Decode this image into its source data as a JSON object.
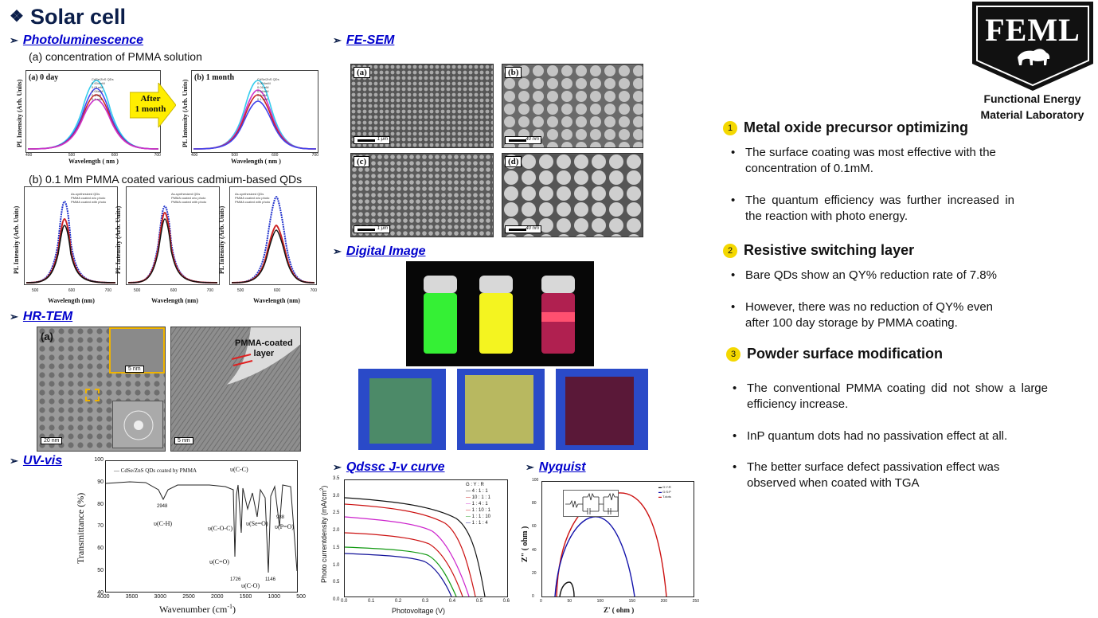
{
  "title": "Solar cell",
  "logo": {
    "text": "FEML",
    "caption_line1": "Functional Energy",
    "caption_line2": "Material Laboratory"
  },
  "pl": {
    "heading": "Photoluminescence",
    "sub_a": "(a) concentration of PMMA solution",
    "sub_b": "(b) 0.1 Mm PMMA coated various cadmium-based QDs",
    "arrow_line1": "After",
    "arrow_line2": "1 month",
    "panel_a": "(a) 0 day",
    "panel_b": "(b) 1 month",
    "ylabel_top": "PL Intensity (Arb. Units)",
    "xlabel_top": "Wavelength ( nm )",
    "ylabel_bottom": "PL Intensity (Arb. Units)",
    "xlabel_bottom": "Wavelength (nm)",
    "legend_top": [
      "CdSe/ZnS QDs",
      "0.004mM",
      "0.01mM",
      "0.04mM",
      "0.1mM",
      "0.1 mM"
    ],
    "legend_bottom": [
      "As-synthesized QDs",
      "PMMA coated w/o photo",
      "PMMA coated with photo"
    ],
    "ticks_top": [
      "400",
      "500",
      "600",
      "700"
    ],
    "ticks_bottom": [
      "500",
      "600",
      "700"
    ]
  },
  "hrtem": {
    "heading": "HR-TEM",
    "panel": "(a)",
    "inset_scale": "5 nm",
    "scale_left": "20 nm",
    "scale_right": "5 nm",
    "layer_line1": "PMMA-coated",
    "layer_line2": "layer"
  },
  "uvvis": {
    "heading": "UV-vis",
    "legend": "CdSe/ZnS QDs coated by PMMA",
    "ylabel": "Transmittance (%)",
    "xlabel": "Wavenumber (cm",
    "xlabel_sup": "-1",
    "xlabel_end": ")",
    "yticks": [
      "100",
      "90",
      "80",
      "70",
      "60",
      "50",
      "40"
    ],
    "xticks": [
      "4000",
      "3500",
      "3000",
      "2500",
      "2000",
      "1500",
      "1000",
      "500"
    ],
    "peaks": {
      "ch": "υ(C-H)",
      "ch_num": "2948",
      "cc": "υ(C-C)",
      "coc": "υ(C-O-C)",
      "seo": "υ(Se=O)",
      "po": "υ(P=O)",
      "po_num": "988",
      "co_d": "υ(C=O)",
      "co_d_num": "1726",
      "co_s": "υ(C-O)",
      "co_s_num": "1146"
    }
  },
  "fesem": {
    "heading": "FE-SEM",
    "panels": [
      {
        "label": "(a)",
        "scale": "1 μm"
      },
      {
        "label": "(b)",
        "scale": "40 nm"
      },
      {
        "label": "(c)",
        "scale": "1 μm"
      },
      {
        "label": "(d)",
        "scale": "40 nm"
      }
    ]
  },
  "digital": {
    "heading": "Digital Image"
  },
  "jv": {
    "heading": "Qdssc J-v curve",
    "ylabel": "Photo currentdensity (mA/cm",
    "ylabel_sup": "2",
    "ylabel_end": ")",
    "xlabel": "Photovoltage (V)",
    "legend_title": "G : Y : R",
    "legend": [
      "4 : 1 : 1",
      "10 : 1 : 1",
      "1 : 4 : 1",
      "1 : 10 : 1",
      "1 : 1 : 10",
      "1 : 1 : 4"
    ],
    "yticks": [
      "3.5",
      "3.0",
      "2.5",
      "2.0",
      "1.5",
      "1.0",
      "0.5",
      "0.0"
    ],
    "xticks": [
      "0.0",
      "0.1",
      "0.2",
      "0.3",
      "0.4",
      "0.5",
      "0.6"
    ]
  },
  "nyquist": {
    "heading": "Nyquist",
    "ylabel": "Z\" ( ohm )",
    "xlabel": "Z' ( ohm )",
    "legend": [
      "G:Y:R",
      "G:S:P",
      "T.dots"
    ],
    "yticks": [
      "100",
      "80",
      "60",
      "40",
      "20",
      "0"
    ],
    "xticks": [
      "0",
      "50",
      "100",
      "150",
      "200",
      "250"
    ]
  },
  "sections": [
    {
      "num": "1",
      "heading": "Metal oxide precursor optimizing",
      "bullets": [
        "The surface coating was most effective with the concentration of 0.1mM.",
        "The quantum efficiency was further increased in the reaction with photo energy."
      ]
    },
    {
      "num": "2",
      "heading": "Resistive switching layer",
      "bullets": [
        "Bare QDs show an QY% reduction rate of 7.8%",
        "However, there was no reduction of QY% even after 100 day storage by PMMA coating."
      ]
    },
    {
      "num": "3",
      "heading": "Powder surface modification",
      "bullets": [
        "The conventional PMMA coating did not show a large efficiency increase.",
        "InP quantum dots had no passivation effect at all.",
        "The better surface defect passivation effect was observed when coated with TGA"
      ]
    }
  ],
  "colors": {
    "title": "#0b1e4a",
    "section_link": "#0000cc",
    "badge": "#f4d800"
  }
}
